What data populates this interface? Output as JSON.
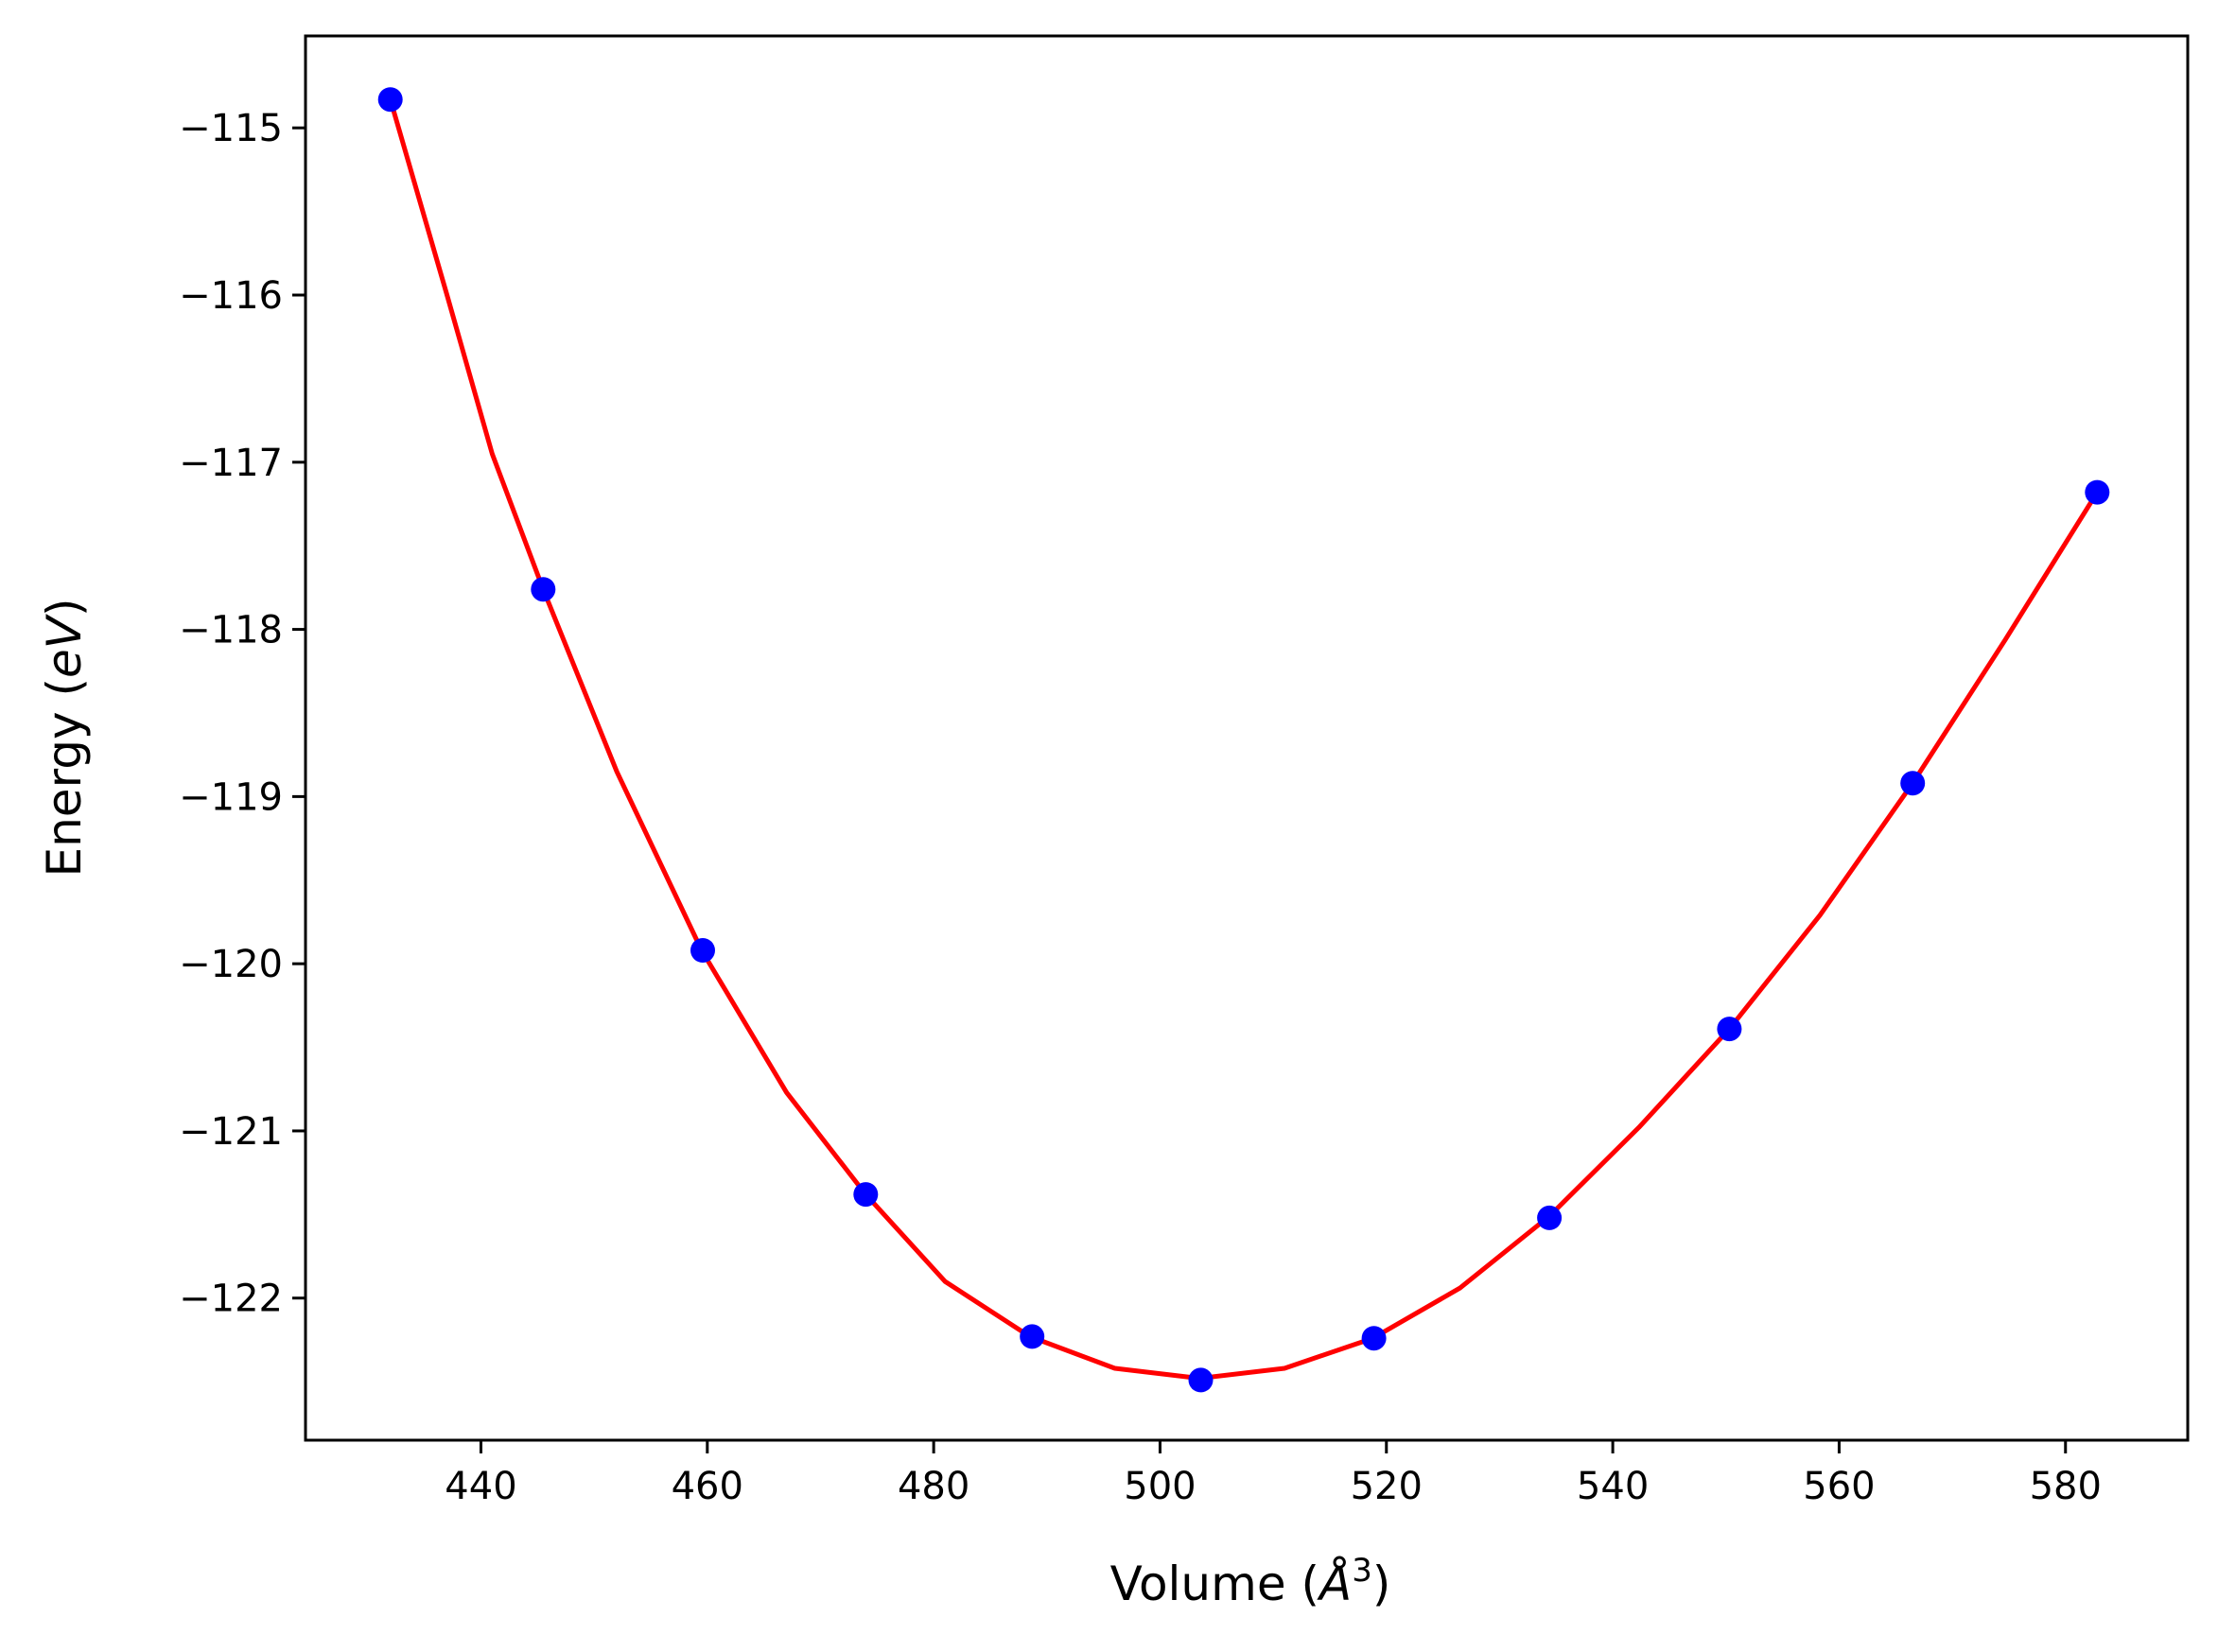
{
  "chart_data": {
    "type": "line",
    "xlabel": {
      "prefix": "Volume (",
      "symbol": "Å",
      "exponent": "3",
      "suffix": ")"
    },
    "ylabel": {
      "prefix": "Energy (",
      "unit": "eV",
      "suffix": ")"
    },
    "xlim": [
      424.5,
      590.8
    ],
    "ylim": [
      -122.85,
      -114.45
    ],
    "xticks": [
      440,
      460,
      480,
      500,
      520,
      540,
      560,
      580
    ],
    "xtick_labels": [
      "440",
      "460",
      "480",
      "500",
      "520",
      "540",
      "560",
      "580"
    ],
    "yticks": [
      -115,
      -116,
      -117,
      -118,
      -119,
      -120,
      -121,
      -122
    ],
    "ytick_labels": [
      "−115",
      "−116",
      "−117",
      "−118",
      "−119",
      "−120",
      "−121",
      "−122"
    ],
    "grid": false,
    "legend": "none",
    "series": [
      {
        "kind": "fit-line",
        "color": "#ff0000",
        "x": [
          432.0,
          437.0,
          441.0,
          445.5,
          452.0,
          459.5,
          467.0,
          474.0,
          481.0,
          488.5,
          496.0,
          503.5,
          511.0,
          518.8,
          526.5,
          534.4,
          542.3,
          550.3,
          558.3,
          566.5,
          574.7,
          582.8
        ],
        "y": [
          -114.83,
          -116.0,
          -116.95,
          -117.76,
          -118.85,
          -119.92,
          -120.77,
          -121.38,
          -121.9,
          -122.23,
          -122.42,
          -122.48,
          -122.42,
          -122.24,
          -121.94,
          -121.51,
          -120.98,
          -120.39,
          -119.71,
          -118.92,
          -118.06,
          -117.18
        ]
      },
      {
        "kind": "data-points",
        "color": "#0000ff",
        "x": [
          432.0,
          445.5,
          459.6,
          474.0,
          488.7,
          503.6,
          518.9,
          534.4,
          550.3,
          566.5,
          582.8
        ],
        "y": [
          -114.83,
          -117.76,
          -119.92,
          -121.38,
          -122.23,
          -122.49,
          -122.24,
          -121.52,
          -120.39,
          -118.92,
          -117.18
        ]
      }
    ]
  }
}
